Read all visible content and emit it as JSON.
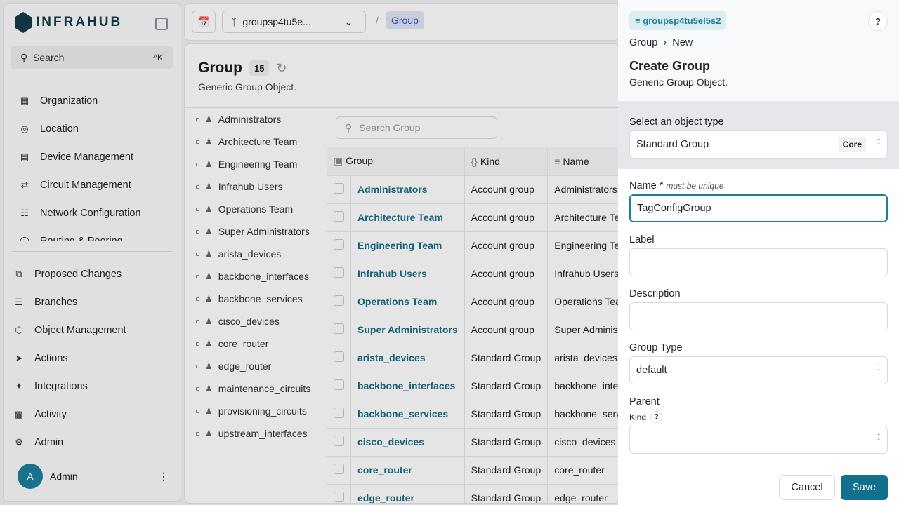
{
  "app": {
    "logo": "INFRAHUB",
    "search_label": "Search",
    "search_shortcut": "^K"
  },
  "sidebar": {
    "top": [
      {
        "label": "Organization",
        "icon": "building-icon"
      },
      {
        "label": "Location",
        "icon": "pin-icon"
      },
      {
        "label": "Device Management",
        "icon": "server-icon"
      },
      {
        "label": "Circuit Management",
        "icon": "circuit-icon"
      },
      {
        "label": "Network Configuration",
        "icon": "network-icon"
      },
      {
        "label": "Routing & Peering",
        "icon": "routing-icon"
      }
    ],
    "bottom": [
      {
        "label": "Proposed Changes",
        "icon": "proposed-changes-icon"
      },
      {
        "label": "Branches",
        "icon": "layers-icon"
      },
      {
        "label": "Object Management",
        "icon": "cube-icon"
      },
      {
        "label": "Actions",
        "icon": "rocket-icon"
      },
      {
        "label": "Integrations",
        "icon": "plug-icon"
      },
      {
        "label": "Activity",
        "icon": "chart-icon"
      },
      {
        "label": "Admin",
        "icon": "gear-icon"
      }
    ],
    "user": {
      "initial": "A",
      "name": "Admin"
    }
  },
  "topbar": {
    "branch": "groupsp4tu5e...",
    "breadcrumb": "Group"
  },
  "page": {
    "title": "Group",
    "count": "15",
    "description": "Generic Group Object.",
    "search_placeholder": "Search Group",
    "tree": [
      "Administrators",
      "Architecture Team",
      "Engineering Team",
      "Infrahub Users",
      "Operations Team",
      "Super Administrators",
      "arista_devices",
      "backbone_interfaces",
      "backbone_services",
      "cisco_devices",
      "core_router",
      "edge_router",
      "maintenance_circuits",
      "provisioning_circuits",
      "upstream_interfaces"
    ],
    "columns": [
      "Group",
      "Kind",
      "Name"
    ],
    "rows": [
      [
        "Administrators",
        "Account group",
        "Administrators"
      ],
      [
        "Architecture Team",
        "Account group",
        "Architecture Team"
      ],
      [
        "Engineering Team",
        "Account group",
        "Engineering Team"
      ],
      [
        "Infrahub Users",
        "Account group",
        "Infrahub Users"
      ],
      [
        "Operations Team",
        "Account group",
        "Operations Team"
      ],
      [
        "Super Administrators",
        "Account group",
        "Super Administrators"
      ],
      [
        "arista_devices",
        "Standard Group",
        "arista_devices"
      ],
      [
        "backbone_interfaces",
        "Standard Group",
        "backbone_interfaces"
      ],
      [
        "backbone_services",
        "Standard Group",
        "backbone_services"
      ],
      [
        "cisco_devices",
        "Standard Group",
        "cisco_devices"
      ],
      [
        "core_router",
        "Standard Group",
        "core_router"
      ],
      [
        "edge_router",
        "Standard Group",
        "edge_router"
      ]
    ]
  },
  "panel": {
    "branch": "groupsp4tu5el5s2",
    "help": "?",
    "crumb": [
      "Group",
      "New"
    ],
    "title": "Create Group",
    "description": "Generic Group Object.",
    "type_label": "Select an object type",
    "type_value": "Standard Group",
    "type_badge": "Core",
    "name_label": "Name *",
    "name_hint": "must be unique",
    "name_value": "TagConfigGroup",
    "label_label": "Label",
    "label_value": "",
    "description_label": "Description",
    "description_value": "",
    "group_type_label": "Group Type",
    "group_type_value": "default",
    "parent_label": "Parent",
    "parent_kind": "Kind",
    "parent_value": "",
    "cancel": "Cancel",
    "save": "Save"
  }
}
